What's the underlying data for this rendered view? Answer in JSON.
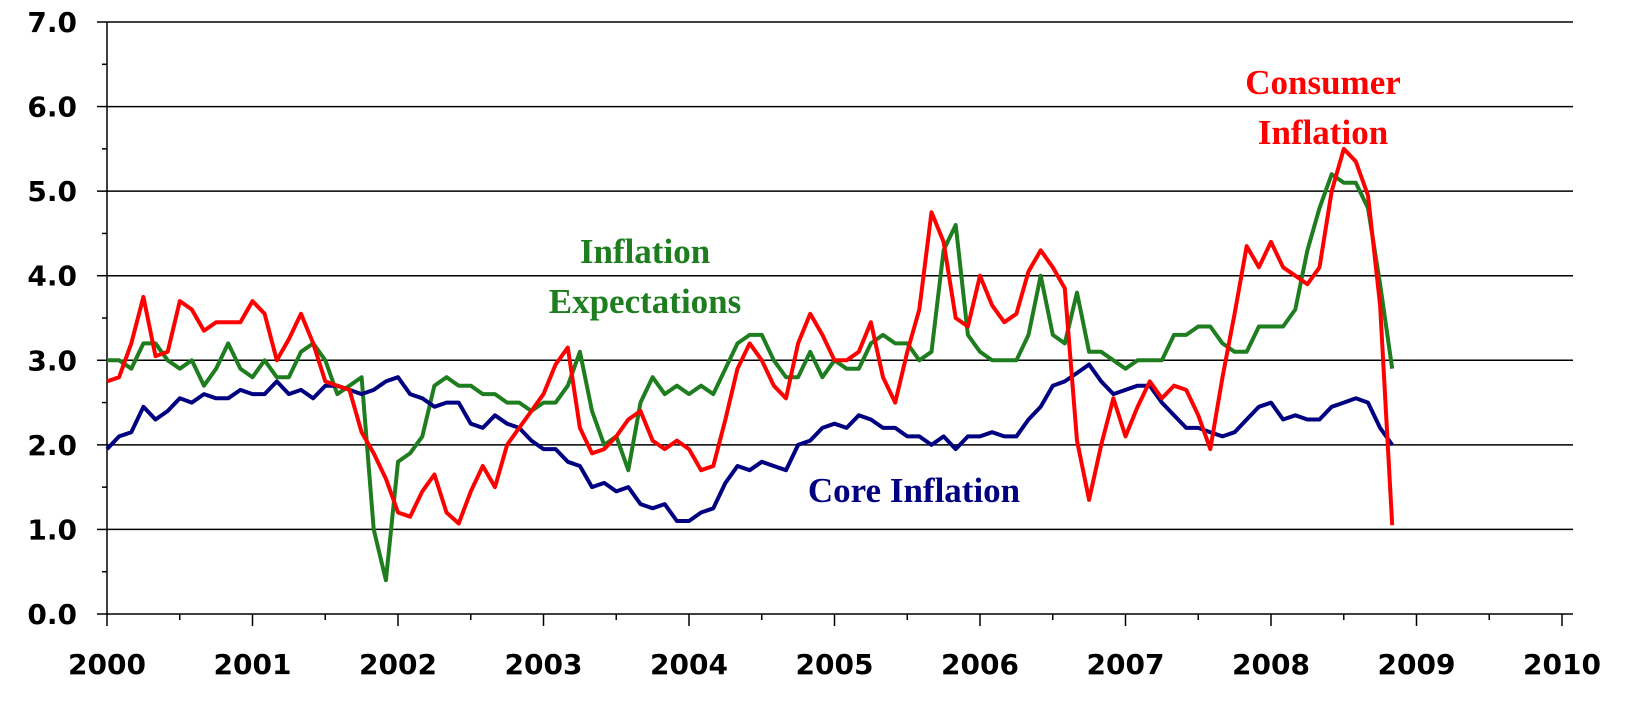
{
  "chart_data": {
    "type": "line",
    "x": [
      2000,
      2000.083,
      2000.167,
      2000.25,
      2000.333,
      2000.417,
      2000.5,
      2000.583,
      2000.667,
      2000.75,
      2000.833,
      2000.917,
      2001,
      2001.083,
      2001.167,
      2001.25,
      2001.333,
      2001.417,
      2001.5,
      2001.583,
      2001.667,
      2001.75,
      2001.833,
      2001.917,
      2002,
      2002.083,
      2002.167,
      2002.25,
      2002.333,
      2002.417,
      2002.5,
      2002.583,
      2002.667,
      2002.75,
      2002.833,
      2002.917,
      2003,
      2003.083,
      2003.167,
      2003.25,
      2003.333,
      2003.417,
      2003.5,
      2003.583,
      2003.667,
      2003.75,
      2003.833,
      2003.917,
      2004,
      2004.083,
      2004.167,
      2004.25,
      2004.333,
      2004.417,
      2004.5,
      2004.583,
      2004.667,
      2004.75,
      2004.833,
      2004.917,
      2005,
      2005.083,
      2005.167,
      2005.25,
      2005.333,
      2005.417,
      2005.5,
      2005.583,
      2005.667,
      2005.75,
      2005.833,
      2005.917,
      2006,
      2006.083,
      2006.167,
      2006.25,
      2006.333,
      2006.417,
      2006.5,
      2006.583,
      2006.667,
      2006.75,
      2006.833,
      2006.917,
      2007,
      2007.083,
      2007.167,
      2007.25,
      2007.333,
      2007.417,
      2007.5,
      2007.583,
      2007.667,
      2007.75,
      2007.833,
      2007.917,
      2008,
      2008.083,
      2008.167,
      2008.25,
      2008.333,
      2008.417,
      2008.5,
      2008.583,
      2008.667,
      2008.75,
      2008.833
    ],
    "series": [
      {
        "name": [
          "Consumer",
          "Inflation"
        ],
        "color": "#ff0000",
        "values": [
          2.75,
          2.8,
          3.2,
          3.75,
          3.05,
          3.1,
          3.7,
          3.6,
          3.35,
          3.45,
          3.45,
          3.45,
          3.7,
          3.55,
          3.0,
          3.25,
          3.55,
          3.2,
          2.75,
          2.7,
          2.65,
          2.15,
          1.9,
          1.6,
          1.2,
          1.15,
          1.45,
          1.65,
          1.2,
          1.07,
          1.45,
          1.75,
          1.5,
          2.0,
          2.2,
          2.4,
          2.6,
          2.95,
          3.15,
          2.2,
          1.9,
          1.95,
          2.1,
          2.3,
          2.4,
          2.05,
          1.95,
          2.05,
          1.95,
          1.7,
          1.75,
          2.3,
          2.9,
          3.2,
          3.0,
          2.7,
          2.55,
          3.2,
          3.55,
          3.3,
          3.0,
          3.0,
          3.1,
          3.45,
          2.8,
          2.5,
          3.1,
          3.6,
          4.75,
          4.4,
          3.5,
          3.4,
          4.0,
          3.65,
          3.45,
          3.55,
          4.05,
          4.3,
          4.1,
          3.85,
          2.05,
          1.35,
          2.0,
          2.55,
          2.1,
          2.45,
          2.75,
          2.55,
          2.7,
          2.65,
          2.35,
          1.95,
          2.8,
          3.55,
          4.35,
          4.1,
          4.4,
          4.1,
          4.0,
          3.9,
          4.1,
          5.0,
          5.5,
          5.35,
          4.95,
          3.65,
          1.05
        ]
      },
      {
        "name": [
          "Inflation",
          "Expectations"
        ],
        "color": "#1e7d1e",
        "values": [
          3.0,
          3.0,
          2.9,
          3.2,
          3.2,
          3.0,
          2.9,
          3.0,
          2.7,
          2.9,
          3.2,
          2.9,
          2.8,
          3.0,
          2.8,
          2.8,
          3.1,
          3.2,
          3.0,
          2.6,
          2.7,
          2.8,
          1.0,
          0.4,
          1.8,
          1.9,
          2.1,
          2.7,
          2.8,
          2.7,
          2.7,
          2.6,
          2.6,
          2.5,
          2.5,
          2.4,
          2.5,
          2.5,
          2.7,
          3.1,
          2.4,
          2.0,
          2.1,
          1.7,
          2.5,
          2.8,
          2.6,
          2.7,
          2.6,
          2.7,
          2.6,
          2.9,
          3.2,
          3.3,
          3.3,
          3.0,
          2.8,
          2.8,
          3.1,
          2.8,
          3.0,
          2.9,
          2.9,
          3.2,
          3.3,
          3.2,
          3.2,
          3.0,
          3.1,
          4.3,
          4.6,
          3.3,
          3.1,
          3.0,
          3.0,
          3.0,
          3.3,
          4.0,
          3.3,
          3.2,
          3.8,
          3.1,
          3.1,
          3.0,
          2.9,
          3.0,
          3.0,
          3.0,
          3.3,
          3.3,
          3.4,
          3.4,
          3.2,
          3.1,
          3.1,
          3.4,
          3.4,
          3.4,
          3.6,
          4.3,
          4.8,
          5.2,
          5.1,
          5.1,
          4.8,
          3.9,
          2.9
        ]
      },
      {
        "name": [
          "Core Inflation"
        ],
        "color": "#000080",
        "values": [
          1.95,
          2.1,
          2.15,
          2.45,
          2.3,
          2.4,
          2.55,
          2.5,
          2.6,
          2.55,
          2.55,
          2.65,
          2.6,
          2.6,
          2.75,
          2.6,
          2.65,
          2.55,
          2.7,
          2.7,
          2.65,
          2.6,
          2.65,
          2.75,
          2.8,
          2.6,
          2.55,
          2.45,
          2.5,
          2.5,
          2.25,
          2.2,
          2.35,
          2.25,
          2.2,
          2.05,
          1.95,
          1.95,
          1.8,
          1.75,
          1.5,
          1.55,
          1.45,
          1.5,
          1.3,
          1.25,
          1.3,
          1.1,
          1.1,
          1.2,
          1.25,
          1.55,
          1.75,
          1.7,
          1.8,
          1.75,
          1.7,
          2.0,
          2.05,
          2.2,
          2.25,
          2.2,
          2.35,
          2.3,
          2.2,
          2.2,
          2.1,
          2.1,
          2.0,
          2.1,
          1.95,
          2.1,
          2.1,
          2.15,
          2.1,
          2.1,
          2.3,
          2.45,
          2.7,
          2.75,
          2.85,
          2.95,
          2.75,
          2.6,
          2.65,
          2.7,
          2.7,
          2.5,
          2.35,
          2.2,
          2.2,
          2.15,
          2.1,
          2.15,
          2.3,
          2.45,
          2.5,
          2.3,
          2.35,
          2.3,
          2.3,
          2.45,
          2.5,
          2.55,
          2.5,
          2.2,
          2.0
        ]
      }
    ],
    "xlim": [
      2000,
      2010
    ],
    "xticks": [
      2000,
      2001,
      2002,
      2003,
      2004,
      2005,
      2006,
      2007,
      2008,
      2009,
      2010
    ],
    "ylim": [
      0,
      7
    ],
    "yticks": [
      {
        "value": 0,
        "label": "0.0"
      },
      {
        "value": 1,
        "label": "1.0"
      },
      {
        "value": 2,
        "label": "2.0"
      },
      {
        "value": 3,
        "label": "3.0"
      },
      {
        "value": 4,
        "label": "4.0"
      },
      {
        "value": 5,
        "label": "5.0"
      },
      {
        "value": 6,
        "label": "6.0"
      },
      {
        "value": 7,
        "label": "7.0"
      }
    ],
    "grid": true
  }
}
